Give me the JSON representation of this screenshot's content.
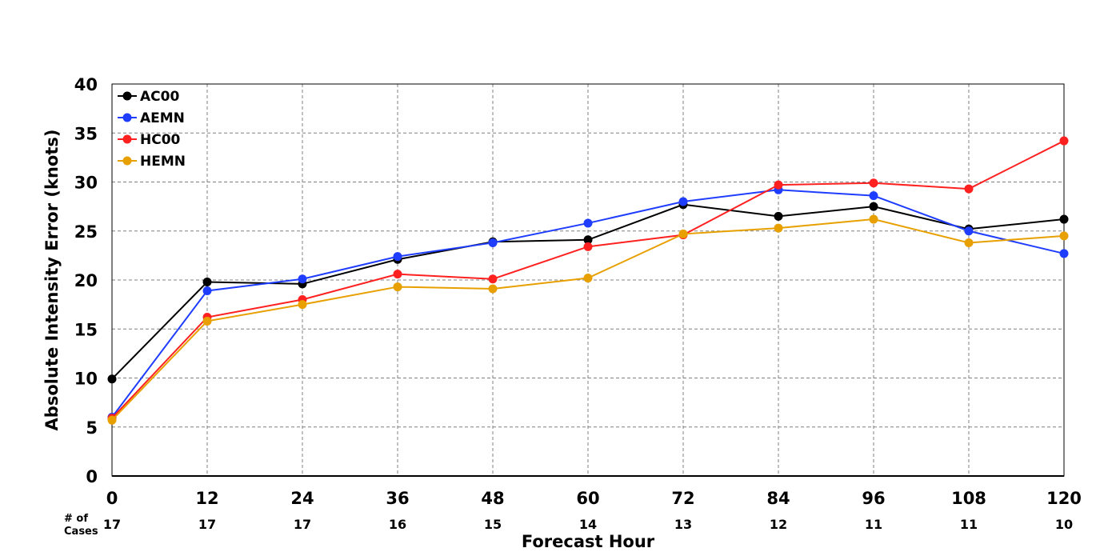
{
  "chart_data": {
    "type": "line",
    "title": "",
    "xlabel": "Forecast Hour",
    "ylabel": "Absolute Intensity Error (knots)",
    "x": [
      0,
      12,
      24,
      36,
      48,
      60,
      72,
      84,
      96,
      108,
      120
    ],
    "xticks": [
      "0",
      "12",
      "24",
      "36",
      "48",
      "60",
      "72",
      "84",
      "96",
      "108",
      "120"
    ],
    "yticks": [
      "0",
      "5",
      "10",
      "15",
      "20",
      "25",
      "30",
      "35",
      "40"
    ],
    "xlim": [
      0,
      120
    ],
    "ylim": [
      0,
      40
    ],
    "grid": true,
    "legend_position": "top-left",
    "cases_label_line1": "# of",
    "cases_label_line2": "Cases",
    "cases": [
      "17",
      "17",
      "17",
      "16",
      "15",
      "14",
      "13",
      "12",
      "11",
      "11",
      "10"
    ],
    "series": [
      {
        "name": "AC00",
        "color": "#000000",
        "values": [
          9.9,
          19.8,
          19.6,
          22.1,
          23.9,
          24.1,
          27.7,
          26.5,
          27.5,
          25.2,
          26.2
        ]
      },
      {
        "name": "AEMN",
        "color": "#1f3dff",
        "values": [
          6.0,
          18.9,
          20.1,
          22.4,
          23.8,
          25.8,
          28.0,
          29.2,
          28.6,
          25.0,
          22.7
        ]
      },
      {
        "name": "HC00",
        "color": "#ff2020",
        "values": [
          5.9,
          16.2,
          18.0,
          20.6,
          20.1,
          23.4,
          24.6,
          29.7,
          29.9,
          29.3,
          34.2
        ]
      },
      {
        "name": "HEMN",
        "color": "#e8a000",
        "values": [
          5.7,
          15.8,
          17.5,
          19.3,
          19.1,
          20.2,
          24.7,
          25.3,
          26.2,
          23.8,
          24.5
        ]
      }
    ]
  }
}
